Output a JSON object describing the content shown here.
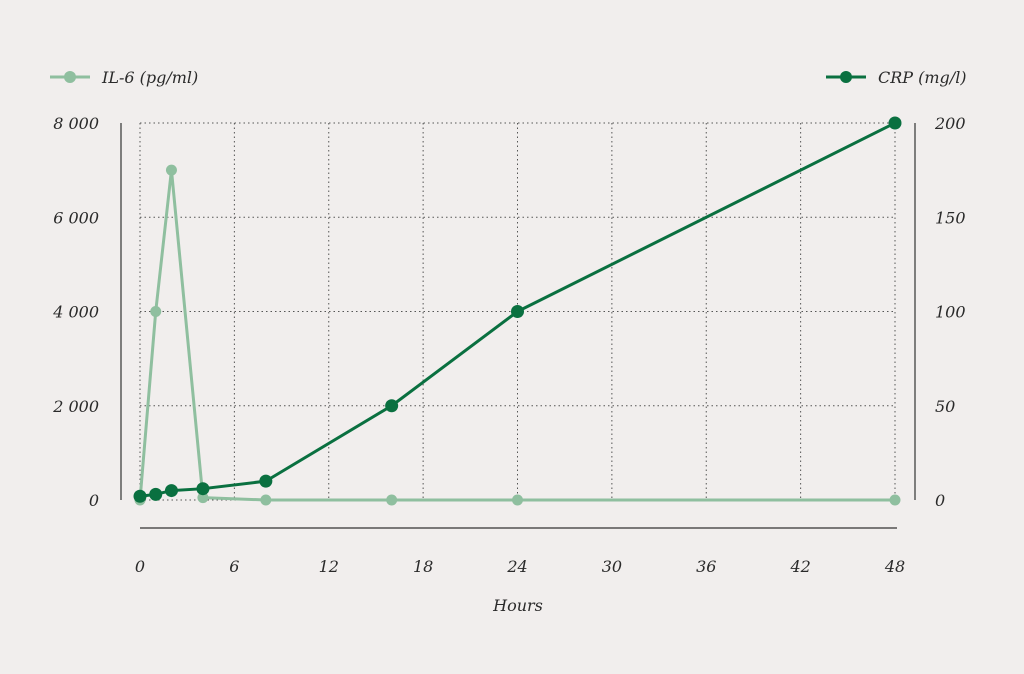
{
  "chart_data": {
    "type": "line",
    "xlabel": "Hours",
    "x_ticks": [
      0,
      6,
      12,
      18,
      24,
      30,
      36,
      42,
      48
    ],
    "xlim": [
      0,
      48
    ],
    "left_axis": {
      "ylim": [
        0,
        8000
      ],
      "ticks": [
        0,
        2000,
        4000,
        6000,
        8000
      ],
      "tick_labels": [
        "0",
        "2 000",
        "4 000",
        "6 000",
        "8 000"
      ]
    },
    "right_axis": {
      "ylim": [
        0,
        200
      ],
      "ticks": [
        0,
        50,
        100,
        150,
        200
      ],
      "tick_labels": [
        "0",
        "50",
        "100",
        "150",
        "200"
      ]
    },
    "grid": true,
    "legend_placement": "top",
    "series": [
      {
        "name": "IL-6 (pg/ml)",
        "axis": "left",
        "color": "#8fbf9f",
        "x": [
          0,
          1,
          2,
          4,
          8,
          16,
          24,
          48
        ],
        "y": [
          0,
          4000,
          7000,
          50,
          0,
          0,
          0,
          0
        ]
      },
      {
        "name": "CRP (mg/l)",
        "axis": "right",
        "color": "#0a7040",
        "x": [
          0,
          1,
          2,
          4,
          8,
          16,
          24,
          48
        ],
        "y": [
          2,
          3,
          5,
          6,
          10,
          50,
          100,
          200
        ]
      }
    ]
  }
}
